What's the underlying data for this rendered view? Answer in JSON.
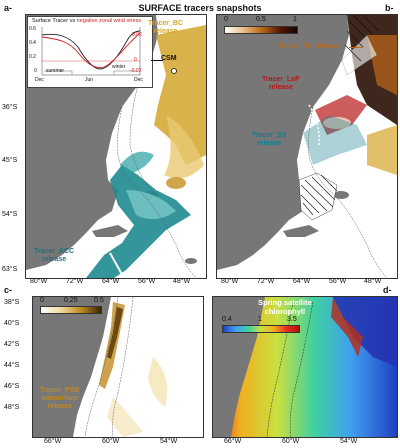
{
  "figure": {
    "title": "SURFACE tracers snapshots",
    "panel_labels": {
      "a": "a-",
      "b": "b-",
      "c": "c-",
      "d": "d-"
    }
  },
  "inset": {
    "title_part1": "Surface Tracer vs ",
    "title_part2": "negative zonal wind stress",
    "ytick_left": [
      "0.6",
      "0.4",
      "0.2",
      "0"
    ],
    "ytick_right": [
      "0.02",
      "0",
      "-0.02"
    ],
    "xticks": [
      "Dec",
      "Jun",
      "Dec"
    ],
    "season_summer": "summer",
    "season_winter": "winter",
    "csm_label": "CSM",
    "colors": {
      "tracer": "#222222",
      "wind": "#d42020"
    }
  },
  "panel_a": {
    "lat_ticks": [
      "36°S",
      "45°S",
      "54°S",
      "63°S"
    ],
    "lon_ticks": [
      "80°W",
      "72°W",
      "64°W",
      "56°W",
      "48°W"
    ],
    "release_bc": [
      "Tracer_BC",
      "release"
    ],
    "release_acc": [
      "Tracer_ACC",
      "release"
    ]
  },
  "panel_b": {
    "colorbar_ticks": [
      "0",
      "0.5",
      "1"
    ],
    "lat_ticks": [
      "36°S",
      "45°S",
      "54°S",
      "63°S"
    ],
    "lon_ticks": [
      "80°W",
      "72°W",
      "64°W",
      "56°W",
      "48°W"
    ],
    "release_ns": [
      "Tracer_NS release"
    ],
    "release_lap": [
      "Tracer_LaP",
      "release"
    ],
    "release_ss": [
      "Tracer_SS",
      "release"
    ]
  },
  "panel_c": {
    "colorbar_ticks": [
      "0",
      "0.25",
      "0.5"
    ],
    "lat_ticks": [
      "38°S",
      "40°S",
      "42°S",
      "44°S",
      "46°S",
      "48°S"
    ],
    "lon_ticks": [
      "66°W",
      "60°W",
      "54°W"
    ],
    "release_psb": [
      "Tracer_PSB",
      "subsurface",
      "release"
    ]
  },
  "panel_d": {
    "title": [
      "Spring satellite",
      "chlorophyll"
    ],
    "colorbar_ticks": [
      "0.4",
      "1",
      "3.5"
    ],
    "lon_ticks": [
      "66°W",
      "60°W",
      "54°W"
    ]
  },
  "colors": {
    "land": "#777777",
    "bc": "#d4a52a",
    "acc": "#1e8a8f",
    "ns": "#c06a18",
    "lap": "#b81818",
    "ss": "#127d8c",
    "psb": "#c08a20"
  }
}
